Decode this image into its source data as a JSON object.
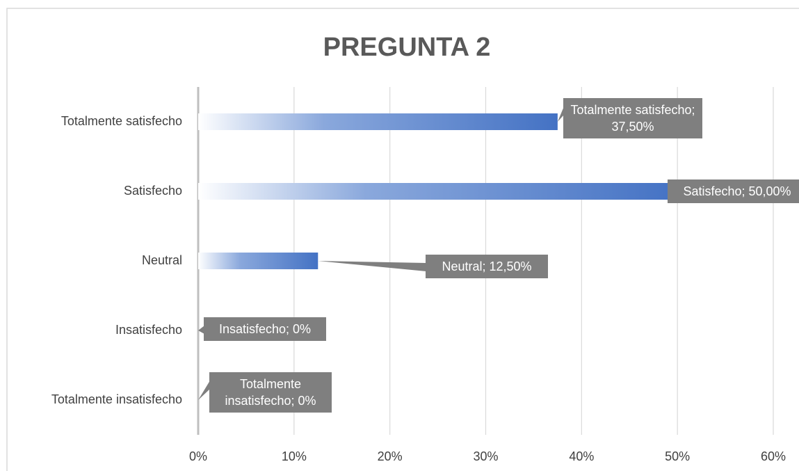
{
  "chart_data": {
    "type": "bar",
    "orientation": "horizontal",
    "title": "PREGUNTA 2",
    "categories": [
      "Totalmente satisfecho",
      "Satisfecho",
      "Neutral",
      "Insatisfecho",
      "Totalmente insatisfecho"
    ],
    "values": [
      37.5,
      50,
      12.5,
      0,
      0
    ],
    "value_labels": [
      "Totalmente satisfecho; 37,50%",
      "Satisfecho; 50,00%",
      "Neutral; 12,50%",
      "Insatisfecho; 0%",
      "Totalmente insatisfecho; 0%"
    ],
    "color": "#4472c4",
    "xlim": [
      0,
      60
    ],
    "xticks": [
      {
        "value": 0,
        "label": "0%"
      },
      {
        "value": 10,
        "label": "10%"
      },
      {
        "value": 20,
        "label": "20%"
      },
      {
        "value": 30,
        "label": "30%"
      },
      {
        "value": 40,
        "label": "40%"
      },
      {
        "value": 50,
        "label": "50%"
      },
      {
        "value": 60,
        "label": "60%"
      }
    ],
    "grid": true
  }
}
